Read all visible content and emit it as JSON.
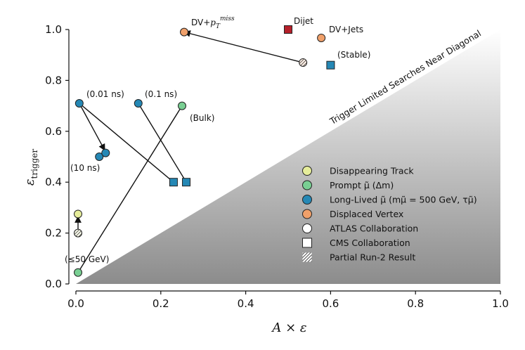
{
  "chart_data": {
    "type": "scatter",
    "xlabel": "A × ε",
    "ylabel": "ε",
    "ylabel_subscript": "trigger",
    "xlim": [
      0.0,
      1.0
    ],
    "ylim": [
      0.0,
      1.0
    ],
    "xticks": [
      "0.0",
      "0.2",
      "0.4",
      "0.6",
      "0.8",
      "1.0"
    ],
    "yticks": [
      "0.0",
      "0.2",
      "0.4",
      "0.6",
      "0.8",
      "1.0"
    ],
    "diagonal_label": "Trigger Limited Searches Near Diagonal",
    "colors": {
      "disappearing": "#e6ed9b",
      "prompt": "#79cf93",
      "longlived": "#2588b5",
      "displaced": "#f0a06a",
      "dijet": "#b5202a",
      "edge": "#222222"
    },
    "points": [
      {
        "id": "dijet",
        "x": 0.5,
        "y": 1.0,
        "marker": "square",
        "cat": "dijet"
      },
      {
        "id": "dv-pt",
        "x": 0.255,
        "y": 0.99,
        "marker": "circle",
        "cat": "displaced"
      },
      {
        "id": "dv-jets",
        "x": 0.578,
        "y": 0.967,
        "marker": "circle",
        "cat": "displaced"
      },
      {
        "id": "dv-partial",
        "x": 0.535,
        "y": 0.87,
        "marker": "circle",
        "cat": "displaced",
        "partial": true
      },
      {
        "id": "stable",
        "x": 0.6,
        "y": 0.86,
        "marker": "square",
        "cat": "longlived"
      },
      {
        "id": "ll-001",
        "x": 0.008,
        "y": 0.71,
        "marker": "circle",
        "cat": "longlived"
      },
      {
        "id": "ll-01",
        "x": 0.147,
        "y": 0.71,
        "marker": "circle",
        "cat": "longlived"
      },
      {
        "id": "bulk",
        "x": 0.25,
        "y": 0.7,
        "marker": "circle",
        "cat": "prompt"
      },
      {
        "id": "ll-10a",
        "x": 0.055,
        "y": 0.5,
        "marker": "circle",
        "cat": "longlived"
      },
      {
        "id": "ll-10b",
        "x": 0.07,
        "y": 0.515,
        "marker": "circle",
        "cat": "longlived"
      },
      {
        "id": "cms-ll-1",
        "x": 0.23,
        "y": 0.4,
        "marker": "square",
        "cat": "longlived"
      },
      {
        "id": "cms-ll-2",
        "x": 0.26,
        "y": 0.4,
        "marker": "square",
        "cat": "longlived"
      },
      {
        "id": "dt",
        "x": 0.005,
        "y": 0.275,
        "marker": "circle",
        "cat": "disappearing"
      },
      {
        "id": "dt-partial",
        "x": 0.005,
        "y": 0.2,
        "marker": "circle",
        "cat": "disappearing",
        "partial": true
      },
      {
        "id": "prompt-low",
        "x": 0.005,
        "y": 0.045,
        "marker": "circle",
        "cat": "prompt"
      }
    ],
    "lines": [
      {
        "id": "ll-001-to-cms",
        "from": [
          0.008,
          0.71
        ],
        "to": [
          0.23,
          0.4
        ],
        "arrow": false
      },
      {
        "id": "ll-01-to-cms",
        "from": [
          0.147,
          0.71
        ],
        "to": [
          0.26,
          0.4
        ],
        "arrow": false
      },
      {
        "id": "prompt-low-to-bulk",
        "from": [
          0.005,
          0.045
        ],
        "to": [
          0.25,
          0.7
        ],
        "arrow": false
      },
      {
        "id": "dv-arrow",
        "from": [
          0.535,
          0.87
        ],
        "to": [
          0.255,
          0.99
        ],
        "arrow": true
      },
      {
        "id": "ll-arrow",
        "from": [
          0.008,
          0.71
        ],
        "to": [
          0.068,
          0.525
        ],
        "arrow": true
      },
      {
        "id": "dt-arrow",
        "from": [
          0.005,
          0.2
        ],
        "to": [
          0.005,
          0.265
        ],
        "arrow": true
      }
    ],
    "annotations": [
      {
        "id": "ann-dijet",
        "text": "Dijet"
      },
      {
        "id": "ann-dvjets",
        "text": "DV+Jets"
      },
      {
        "id": "ann-stable",
        "text": "(Stable)"
      },
      {
        "id": "ann-001",
        "text": "(0.01 ns)"
      },
      {
        "id": "ann-01",
        "text": "(0.1 ns)"
      },
      {
        "id": "ann-bulk",
        "text": "(Bulk)"
      },
      {
        "id": "ann-10",
        "text": "(10 ns)"
      },
      {
        "id": "ann-50",
        "text": "(≤50 GeV)"
      }
    ],
    "annotation_dvpt": {
      "base": "DV+",
      "p": "p",
      "sub": "T",
      "sup": "miss"
    },
    "legend": [
      {
        "id": "legend-disappearing",
        "label": "Disappearing Track",
        "marker": "circle",
        "cat": "disappearing"
      },
      {
        "id": "legend-prompt",
        "label": "Prompt μ̃ (Δm)",
        "marker": "circle",
        "cat": "prompt"
      },
      {
        "id": "legend-longlived",
        "label": "Long-Lived μ̃ (mμ̃ = 500 GeV, τμ̃)",
        "marker": "circle",
        "cat": "longlived"
      },
      {
        "id": "legend-displaced",
        "label": "Displaced Vertex",
        "marker": "circle",
        "cat": "displaced"
      },
      {
        "id": "legend-atlas",
        "label": "ATLAS Collaboration",
        "marker": "circle",
        "cat": "open"
      },
      {
        "id": "legend-cms",
        "label": "CMS Collaboration",
        "marker": "square",
        "cat": "open"
      },
      {
        "id": "legend-partial",
        "label": "Partial Run-2 Result",
        "marker": "hatch",
        "cat": "open"
      }
    ],
    "legend_position": "center-right"
  }
}
